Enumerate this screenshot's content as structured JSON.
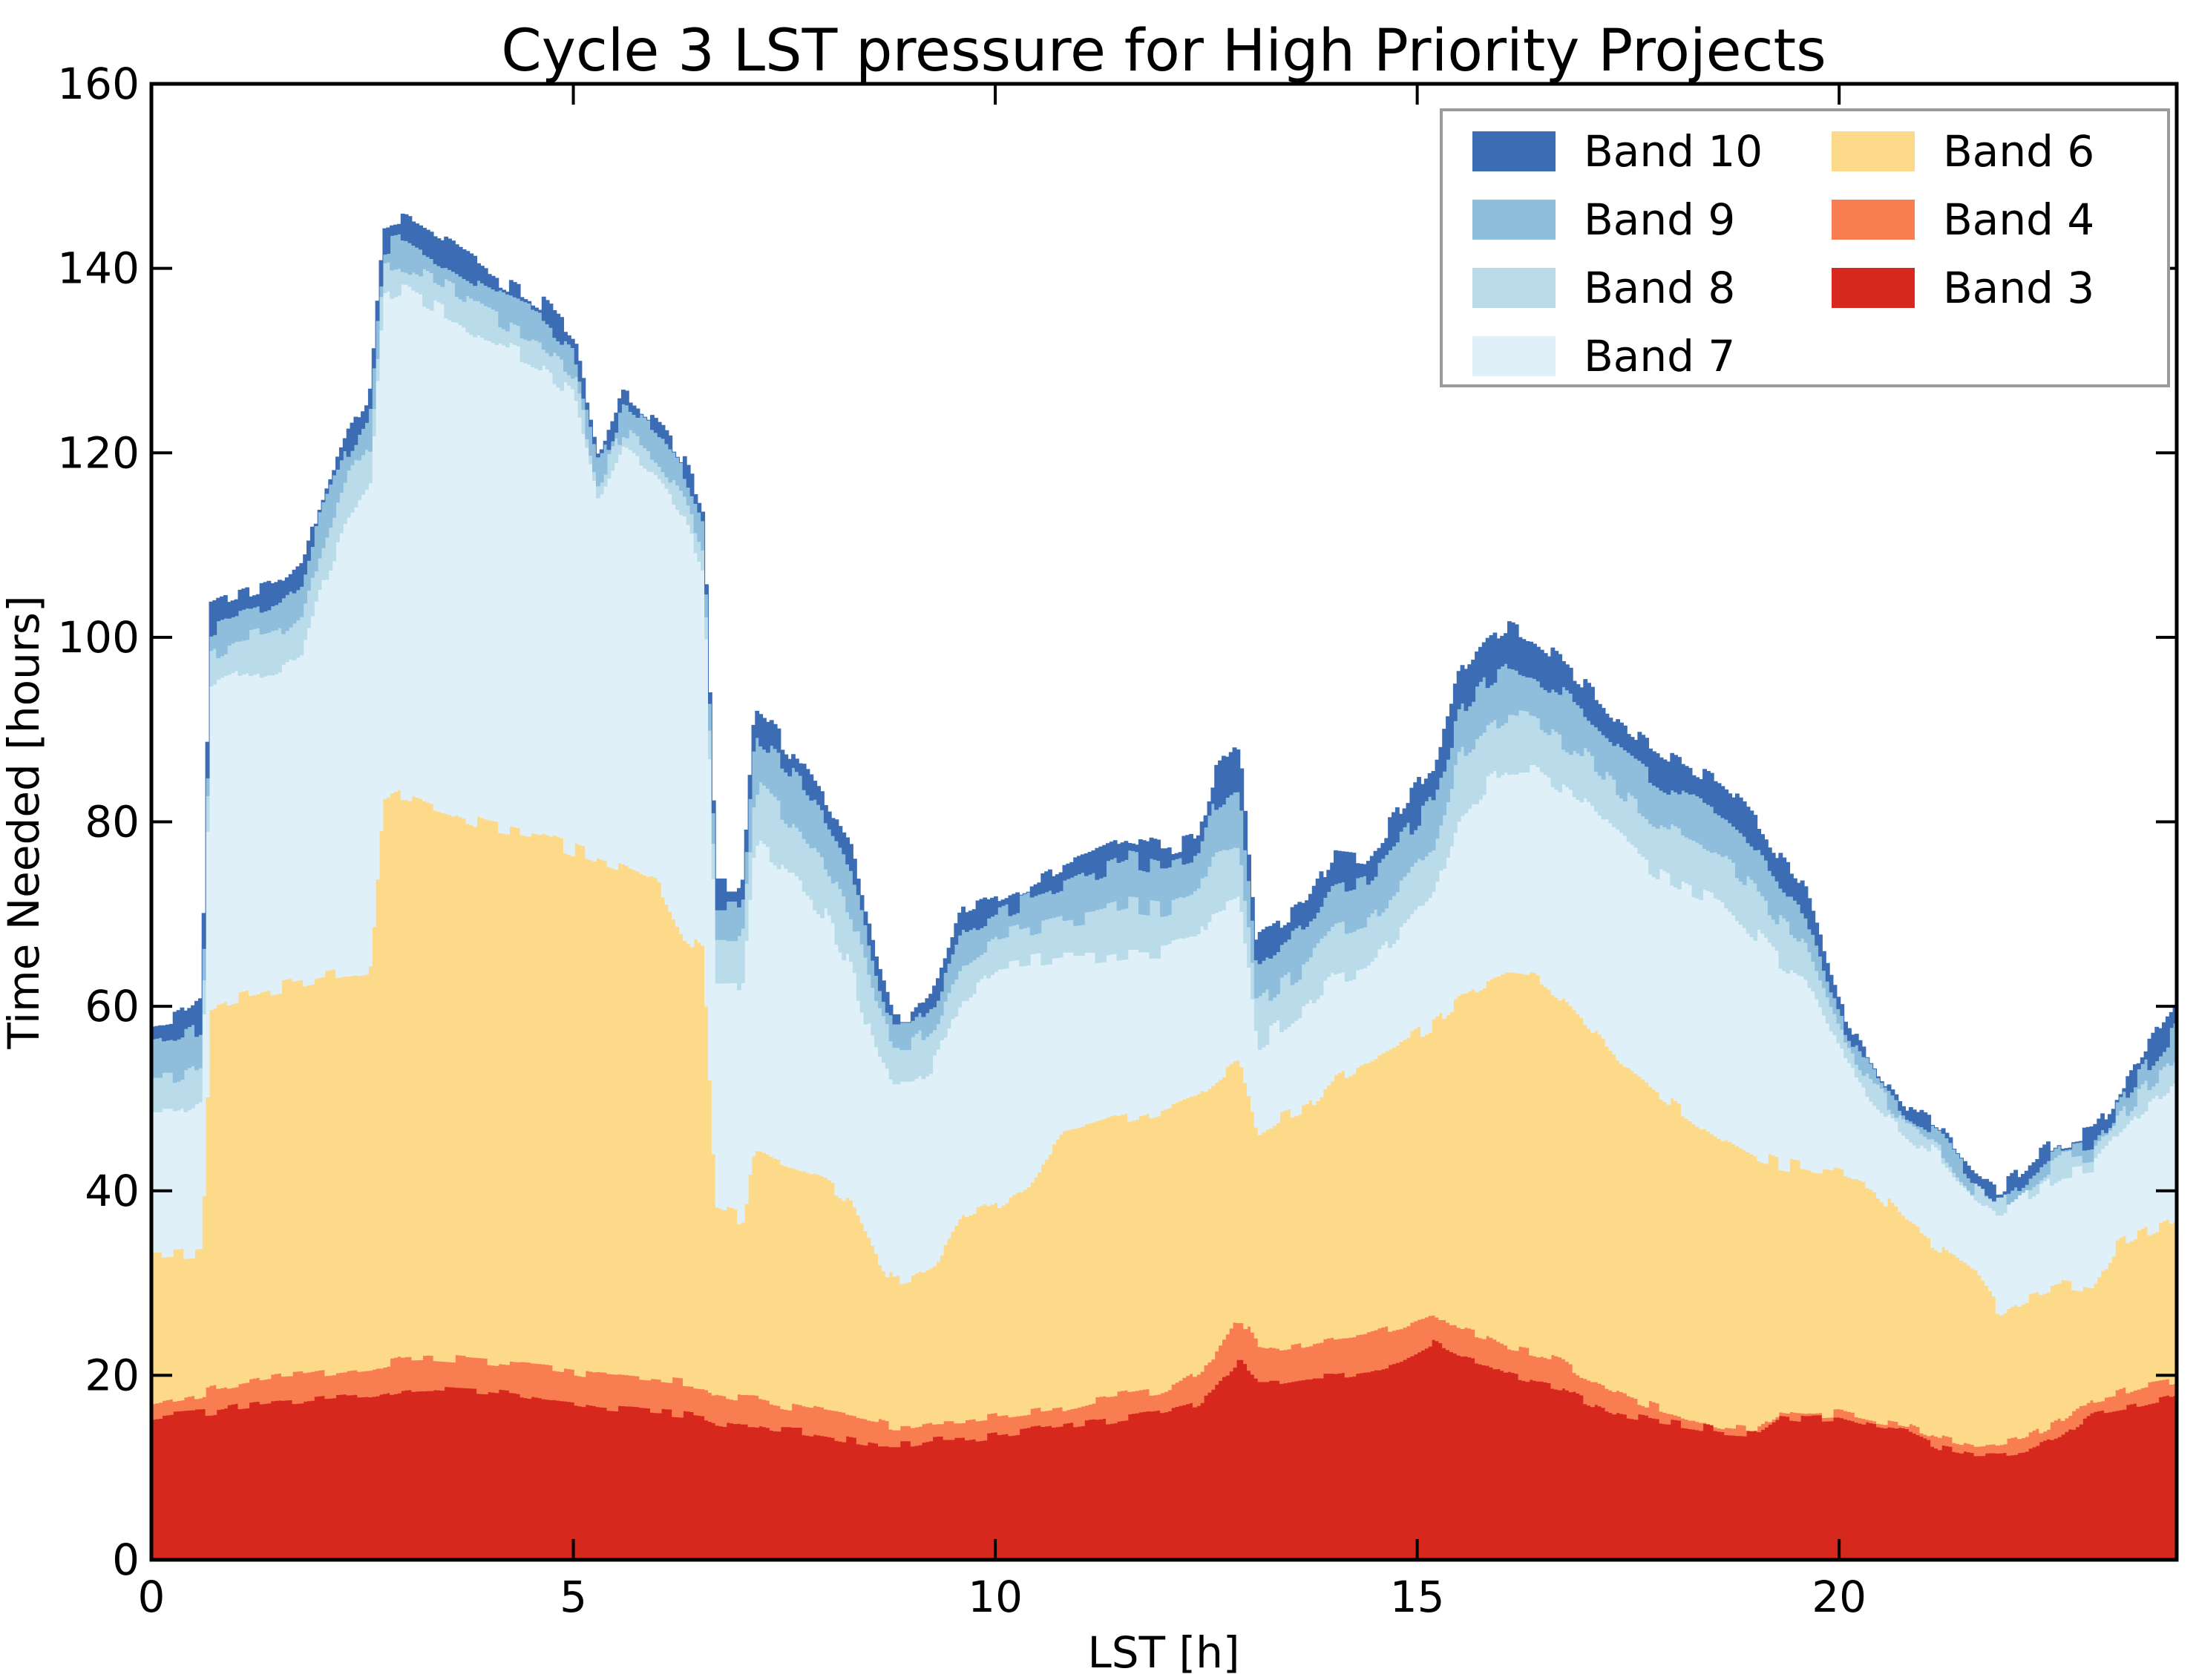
{
  "figure": {
    "title": "Cycle 3 LST pressure for High Priority Projects",
    "xlabel": "LST [h]",
    "ylabel": "Time Needed [hours]"
  },
  "chart_data": {
    "type": "area",
    "stacked": true,
    "title": "Cycle 3 LST pressure for High Priority Projects",
    "xlabel": "LST [h]",
    "ylabel": "Time Needed [hours]",
    "xlim": [
      0,
      24
    ],
    "ylim": [
      0,
      160
    ],
    "x_ticks": [
      0,
      5,
      10,
      15,
      20
    ],
    "y_ticks": [
      0,
      20,
      40,
      60,
      80,
      100,
      120,
      140,
      160
    ],
    "grid": false,
    "legend_position": "upper right",
    "legend_columns": 2,
    "legend_order": [
      "Band 10",
      "Band 9",
      "Band 8",
      "Band 7",
      "Band 6",
      "Band 4",
      "Band 3"
    ],
    "x": [
      0,
      0.3,
      0.6,
      0.7,
      1,
      1.5,
      1.8,
      2,
      2.3,
      2.6,
      2.75,
      3,
      3.3,
      3.6,
      4,
      4.3,
      4.6,
      5,
      5.3,
      5.6,
      6,
      6.3,
      6.55,
      6.7,
      7,
      7.15,
      7.4,
      7.7,
      8,
      8.3,
      8.6,
      8.8,
      9,
      9.3,
      9.6,
      10,
      10.4,
      10.8,
      11.2,
      11.6,
      12,
      12.4,
      12.6,
      12.9,
      13.1,
      13.4,
      13.7,
      14,
      14.4,
      14.8,
      15.2,
      15.5,
      15.8,
      16.1,
      16.4,
      16.7,
      17,
      17.4,
      17.8,
      18.2,
      18.6,
      19,
      19.3,
      19.6,
      20,
      20.4,
      20.8,
      21.2,
      21.6,
      21.9,
      22.2,
      22.6,
      23,
      23.3,
      23.6,
      24
    ],
    "series": [
      {
        "name": "Band 3",
        "color": "#d7281e",
        "values": [
          15.5,
          15.8,
          16,
          16,
          16.5,
          17,
          17.2,
          17.4,
          17.6,
          17.8,
          18,
          18.5,
          18.7,
          18.5,
          18.3,
          18,
          17.5,
          17,
          16.5,
          16.3,
          16,
          15.8,
          15.5,
          15,
          14.5,
          14.5,
          14,
          14,
          13.5,
          13,
          12.5,
          12.5,
          12.5,
          13,
          13,
          13.5,
          14,
          14.5,
          15,
          15.5,
          16,
          17,
          18.5,
          21.5,
          19.5,
          19.5,
          20,
          20,
          20.5,
          21.5,
          23.5,
          22,
          21.3,
          20,
          19.3,
          18.7,
          17.3,
          15.8,
          15.2,
          14.7,
          14,
          13.8,
          15.6,
          15.3,
          15.4,
          14.5,
          13.9,
          12.2,
          11.5,
          11.6,
          11.9,
          13.3,
          16,
          16.5,
          17,
          17.8
        ]
      },
      {
        "name": "Band 4",
        "color": "#f87e52",
        "values": [
          1.5,
          1.7,
          2,
          2.5,
          2.5,
          2.8,
          2.8,
          2.9,
          3,
          3.1,
          3.3,
          3.4,
          3.3,
          3.3,
          3.2,
          3.2,
          3.5,
          3.5,
          3.5,
          3.5,
          3.5,
          3.4,
          3.5,
          3,
          3,
          3,
          3,
          2.5,
          2.5,
          2.5,
          2.5,
          2,
          2,
          2,
          2,
          2,
          2,
          2,
          2.5,
          2.5,
          2.5,
          3.5,
          3.5,
          5,
          4,
          3.5,
          3.5,
          4,
          4,
          4,
          3.5,
          3,
          3,
          3,
          3.2,
          2.9,
          2.4,
          2.3,
          1.6,
          1,
          0.6,
          0.4,
          0.5,
          0.4,
          0.6,
          0.7,
          0.7,
          1,
          0.8,
          0.9,
          1.2,
          1.6,
          1.5,
          1.5,
          2,
          1.8
        ]
      },
      {
        "name": "Band 6",
        "color": "#fdd98a",
        "values": [
          16,
          15.7,
          15.5,
          41.5,
          42,
          42.2,
          42.5,
          42.7,
          42.9,
          43.1,
          60.7,
          61.1,
          60,
          59.2,
          58,
          57.8,
          57.5,
          56.5,
          56,
          55.2,
          54,
          48.8,
          47,
          20,
          19.5,
          26.5,
          26,
          25.5,
          25,
          23.5,
          18,
          15.5,
          16,
          17,
          22,
          23,
          25,
          29.5,
          29.5,
          30,
          30.5,
          30,
          30,
          27.5,
          22.5,
          25,
          25.5,
          28,
          29.5,
          30.5,
          31,
          35.5,
          37.7,
          40.5,
          40.5,
          39.4,
          38.3,
          35.9,
          34.2,
          32.8,
          31.4,
          29.8,
          26.9,
          26.8,
          26,
          25.3,
          21.9,
          20.8,
          18.7,
          14.5,
          15.4,
          14.9,
          11.7,
          16,
          16.4,
          17.4
        ]
      },
      {
        "name": "Band 7",
        "color": "#e0f0f8",
        "values": [
          15.5,
          15.3,
          16.5,
          34,
          34.5,
          35,
          36.5,
          42,
          48.5,
          52,
          55,
          55,
          54.5,
          54,
          53,
          52,
          51.5,
          49.5,
          38,
          45,
          43.5,
          45,
          41.5,
          24,
          25,
          34,
          33,
          31,
          29,
          25,
          22,
          22,
          21.5,
          22,
          24,
          26,
          24,
          19.5,
          18.5,
          18,
          17,
          16.5,
          19,
          18,
          10,
          10,
          11,
          11,
          10,
          12,
          14,
          20,
          22,
          22.5,
          23,
          23,
          24,
          24,
          24,
          24.5,
          25.5,
          24,
          22,
          20.5,
          13,
          9.5,
          10,
          9.5,
          8.5,
          10.5,
          11,
          12.2,
          13.3,
          12,
          13.6,
          15
        ]
      },
      {
        "name": "Band 8",
        "color": "#badcea",
        "values": [
          4,
          4,
          4,
          4,
          4,
          3.5,
          4,
          4.5,
          5,
          5,
          3,
          2.5,
          2.5,
          2.5,
          2.5,
          2.5,
          2.5,
          2.5,
          2.5,
          2.5,
          2.5,
          2.5,
          2.5,
          5,
          5,
          6,
          6,
          6,
          5.5,
          6,
          5,
          4,
          4,
          4.5,
          4,
          3,
          3.5,
          4,
          4.5,
          5,
          4.5,
          5,
          6,
          6,
          4,
          4.5,
          4.5,
          5,
          5,
          5,
          5,
          6.5,
          5.5,
          5.5,
          5,
          5,
          5,
          5,
          5,
          5,
          4.5,
          4.5,
          4,
          3.5,
          2,
          1.5,
          1,
          1.3,
          0.8,
          0.8,
          1.1,
          1.5,
          1.5,
          1.5,
          2,
          2.5
        ]
      },
      {
        "name": "Band 9",
        "color": "#8fbedd",
        "values": [
          3.5,
          4,
          4,
          3,
          2.5,
          3,
          3,
          3.5,
          3,
          3.5,
          2.5,
          2.5,
          2.5,
          2.5,
          2.5,
          2.5,
          2.5,
          2.5,
          2,
          2.5,
          2.5,
          2.5,
          2.5,
          4,
          4,
          5,
          5,
          5,
          4.5,
          5,
          3.5,
          2,
          2,
          2.5,
          3,
          2.5,
          3,
          3.5,
          4.5,
          5,
          4.5,
          4,
          5,
          6,
          4,
          4,
          4,
          5,
          5,
          5,
          5.5,
          4.5,
          5.5,
          5.5,
          5,
          5,
          4.5,
          4.5,
          4.5,
          4.5,
          4.5,
          4.5,
          4,
          3.5,
          2,
          1.5,
          0.8,
          1,
          0.9,
          0.8,
          0.9,
          1.1,
          1.2,
          1.5,
          2,
          3
        ]
      },
      {
        "name": "Band 10",
        "color": "#3b6cb4",
        "values": [
          2,
          2,
          2.5,
          2,
          2,
          2,
          2,
          2,
          2,
          2,
          2,
          2,
          2,
          2,
          2,
          2,
          1.5,
          1.5,
          1.5,
          1.5,
          1.5,
          1.5,
          1.5,
          2,
          2,
          3,
          2.5,
          2,
          2,
          2,
          1,
          0.7,
          0.7,
          1,
          2,
          1.5,
          1.5,
          2,
          2,
          2,
          2,
          2,
          3,
          4.5,
          3,
          2.5,
          2.5,
          3.5,
          2,
          3,
          4,
          4.5,
          4.5,
          4.5,
          4,
          3.5,
          3.5,
          3.5,
          3.5,
          3.5,
          3.5,
          3,
          3,
          2.5,
          1.5,
          1,
          0.7,
          0.7,
          0.7,
          0.7,
          0.7,
          0.8,
          0.8,
          1,
          1.5,
          3
        ]
      }
    ],
    "style": {
      "frame_color": "#000000",
      "legend_border_color": "#9b9b9b",
      "background": "#ffffff"
    }
  }
}
